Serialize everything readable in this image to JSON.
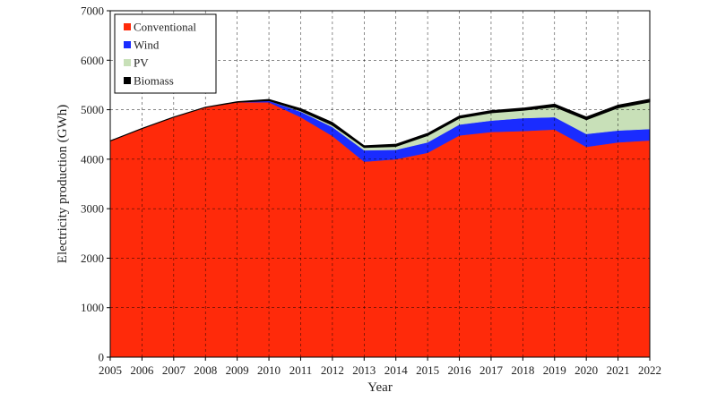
{
  "chart_data": {
    "type": "area",
    "stacked": true,
    "x": [
      2005,
      2006,
      2007,
      2008,
      2009,
      2010,
      2011,
      2012,
      2013,
      2014,
      2015,
      2016,
      2017,
      2018,
      2019,
      2020,
      2021,
      2022
    ],
    "series": [
      {
        "name": "Conventional",
        "color": "#ff2a0a",
        "values": [
          4370,
          4620,
          4850,
          5050,
          5150,
          5150,
          4850,
          4470,
          3950,
          4000,
          4130,
          4480,
          4550,
          4570,
          4600,
          4250,
          4340,
          4380
        ]
      },
      {
        "name": "Wind",
        "color": "#1a2cff",
        "values": [
          0,
          0,
          0,
          0,
          5,
          30,
          110,
          180,
          230,
          190,
          210,
          220,
          230,
          260,
          250,
          260,
          240,
          230
        ]
      },
      {
        "name": "PV",
        "color": "#c8e0b8",
        "values": [
          0,
          0,
          0,
          0,
          0,
          5,
          20,
          40,
          60,
          70,
          140,
          130,
          160,
          160,
          210,
          290,
          460,
          550
        ]
      },
      {
        "name": "Biomass",
        "color": "#000000",
        "values": [
          0,
          0,
          0,
          0,
          5,
          20,
          40,
          50,
          30,
          40,
          40,
          40,
          40,
          40,
          50,
          50,
          50,
          50
        ]
      }
    ],
    "xlabel": "Year",
    "ylabel": "Electricity production (GWh)",
    "xlim": [
      2005,
      2022
    ],
    "ylim": [
      0,
      7000
    ],
    "yticks": [
      0,
      1000,
      2000,
      3000,
      4000,
      5000,
      6000,
      7000
    ],
    "grid": true,
    "legend_position": "top-left"
  }
}
